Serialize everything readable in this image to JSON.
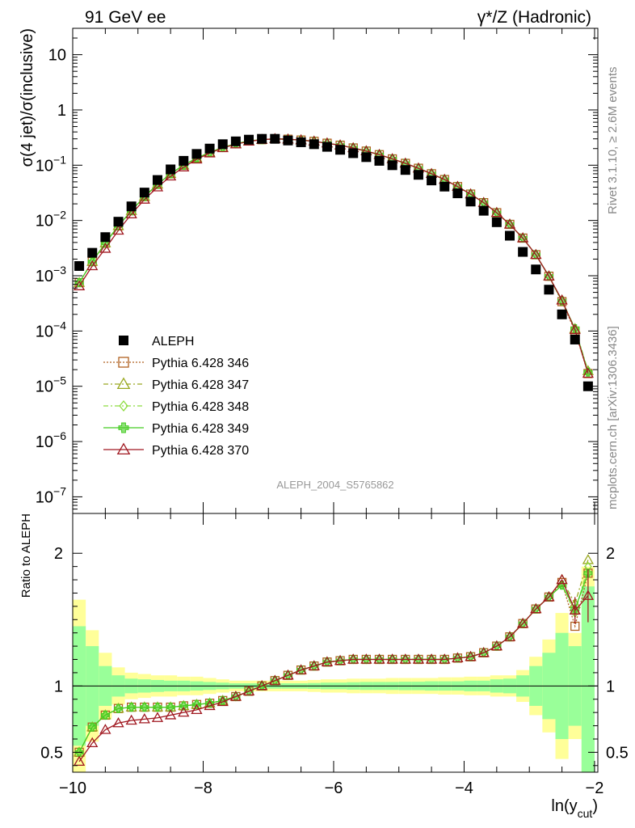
{
  "header": {
    "left": "91 GeV ee",
    "right": "γ*/Z (Hadronic)"
  },
  "side_text": {
    "top": "Rivet 3.1.10, ≥ 2.6M events",
    "bottom": "mcplots.cern.ch [arXiv:1306.3436]"
  },
  "analysis_label": "ALEPH_2004_S5765862",
  "chart_data": [
    {
      "type": "scatter",
      "panel": "main",
      "ylabel": "σ(4 jet)/σ(inclusive)",
      "yscale": "log",
      "ylim": [
        5e-08,
        30
      ],
      "xlim": [
        -10.0,
        -1.95
      ],
      "ytick_labels": [
        "10",
        "1",
        "10^-1",
        "10^-2",
        "10^-3",
        "10^-4",
        "10^-5",
        "10^-6",
        "10^-7"
      ],
      "x": [
        -9.9,
        -9.7,
        -9.5,
        -9.3,
        -9.1,
        -8.9,
        -8.7,
        -8.5,
        -8.3,
        -8.1,
        -7.9,
        -7.7,
        -7.5,
        -7.3,
        -7.1,
        -6.9,
        -6.7,
        -6.5,
        -6.3,
        -6.1,
        -5.9,
        -5.7,
        -5.5,
        -5.3,
        -5.1,
        -4.9,
        -4.7,
        -4.5,
        -4.3,
        -4.1,
        -3.9,
        -3.7,
        -3.5,
        -3.3,
        -3.1,
        -2.9,
        -2.7,
        -2.5,
        -2.3,
        -2.1
      ],
      "series": [
        {
          "name": "ALEPH",
          "color": "#000000",
          "marker": "square-filled",
          "values": [
            0.0015,
            0.0026,
            0.005,
            0.0095,
            0.018,
            0.032,
            0.054,
            0.084,
            0.12,
            0.16,
            0.2,
            0.24,
            0.27,
            0.29,
            0.3,
            0.3,
            0.28,
            0.26,
            0.24,
            0.215,
            0.19,
            0.165,
            0.14,
            0.12,
            0.1,
            0.082,
            0.067,
            0.053,
            0.041,
            0.031,
            0.022,
            0.015,
            0.0093,
            0.0053,
            0.0027,
            0.0013,
            0.00056,
            0.0002,
            7e-05,
            1e-05
          ]
        },
        {
          "name": "Pythia 6.428 346",
          "color": "#b06020",
          "marker": "square-open",
          "dash": "2,2",
          "values": [
            0.00075,
            0.0018,
            0.0039,
            0.008,
            0.015,
            0.027,
            0.045,
            0.07,
            0.1,
            0.135,
            0.17,
            0.21,
            0.245,
            0.275,
            0.29,
            0.3,
            0.295,
            0.285,
            0.27,
            0.25,
            0.23,
            0.205,
            0.18,
            0.155,
            0.13,
            0.108,
            0.088,
            0.07,
            0.055,
            0.041,
            0.03,
            0.021,
            0.0138,
            0.0085,
            0.0048,
            0.0024,
            0.00098,
            0.00034,
            0.0001,
            1.7e-05
          ]
        },
        {
          "name": "Pythia 6.428 347",
          "color": "#9aa820",
          "marker": "triangle-open",
          "dash": "6,3,2,3",
          "values": [
            0.00075,
            0.0018,
            0.0039,
            0.008,
            0.015,
            0.027,
            0.045,
            0.07,
            0.1,
            0.135,
            0.17,
            0.21,
            0.245,
            0.275,
            0.29,
            0.3,
            0.295,
            0.285,
            0.27,
            0.25,
            0.23,
            0.205,
            0.18,
            0.155,
            0.13,
            0.108,
            0.088,
            0.07,
            0.055,
            0.041,
            0.03,
            0.021,
            0.0138,
            0.0085,
            0.0048,
            0.0024,
            0.00098,
            0.00036,
            0.00011,
            1.9e-05
          ]
        },
        {
          "name": "Pythia 6.428 348",
          "color": "#8edc40",
          "marker": "diamond-open",
          "dash": "6,3,2,3",
          "values": [
            0.00075,
            0.0018,
            0.0039,
            0.008,
            0.015,
            0.027,
            0.045,
            0.07,
            0.1,
            0.135,
            0.17,
            0.21,
            0.245,
            0.275,
            0.29,
            0.3,
            0.295,
            0.285,
            0.27,
            0.25,
            0.23,
            0.205,
            0.18,
            0.155,
            0.13,
            0.108,
            0.088,
            0.07,
            0.055,
            0.041,
            0.03,
            0.021,
            0.0138,
            0.0085,
            0.0048,
            0.0024,
            0.00098,
            0.00035,
            0.00011,
            1.85e-05
          ]
        },
        {
          "name": "Pythia 6.428 349",
          "color": "#44cc22",
          "marker": "cross-open",
          "dash": "",
          "values": [
            0.00075,
            0.0018,
            0.0039,
            0.008,
            0.015,
            0.027,
            0.045,
            0.07,
            0.1,
            0.135,
            0.17,
            0.21,
            0.245,
            0.275,
            0.29,
            0.3,
            0.295,
            0.285,
            0.27,
            0.25,
            0.23,
            0.205,
            0.18,
            0.155,
            0.13,
            0.108,
            0.088,
            0.07,
            0.055,
            0.041,
            0.03,
            0.021,
            0.0138,
            0.0085,
            0.0048,
            0.0024,
            0.00098,
            0.00035,
            0.00011,
            1.8e-05
          ]
        },
        {
          "name": "Pythia 6.428 370",
          "color": "#a01820",
          "marker": "triangle-open",
          "dash": "",
          "values": [
            0.00065,
            0.0015,
            0.0031,
            0.0066,
            0.013,
            0.024,
            0.04,
            0.063,
            0.092,
            0.128,
            0.165,
            0.205,
            0.24,
            0.27,
            0.29,
            0.3,
            0.295,
            0.285,
            0.27,
            0.25,
            0.23,
            0.205,
            0.18,
            0.155,
            0.13,
            0.108,
            0.088,
            0.07,
            0.055,
            0.041,
            0.03,
            0.021,
            0.0138,
            0.0085,
            0.0048,
            0.0024,
            0.00098,
            0.00036,
            0.000105,
            1.7e-05
          ]
        }
      ]
    },
    {
      "type": "line",
      "panel": "ratio",
      "ylabel": "Ratio to ALEPH",
      "xlabel": "ln(y",
      "xlabel_sub": "cut",
      "xlabel_close": ")",
      "ylim": [
        0.35,
        2.3
      ],
      "xlim": [
        -10.0,
        -1.95
      ],
      "xtick_labels": [
        "−10",
        "−8",
        "−6",
        "−4",
        "−2"
      ],
      "ytick_labels": [
        "0.5",
        "1",
        "2"
      ],
      "x": [
        -9.9,
        -9.7,
        -9.5,
        -9.3,
        -9.1,
        -8.9,
        -8.7,
        -8.5,
        -8.3,
        -8.1,
        -7.9,
        -7.7,
        -7.5,
        -7.3,
        -7.1,
        -6.9,
        -6.7,
        -6.5,
        -6.3,
        -6.1,
        -5.9,
        -5.7,
        -5.5,
        -5.3,
        -5.1,
        -4.9,
        -4.7,
        -4.5,
        -4.3,
        -4.1,
        -3.9,
        -3.7,
        -3.5,
        -3.3,
        -3.1,
        -2.9,
        -2.7,
        -2.5,
        -2.3,
        -2.1
      ],
      "band_edges": [
        -10.0,
        -9.8,
        -9.6,
        -9.4,
        -9.2,
        -9.0,
        -8.8,
        -8.6,
        -8.4,
        -8.2,
        -8.0,
        -7.8,
        -7.6,
        -7.4,
        -7.2,
        -7.0,
        -6.8,
        -6.6,
        -6.4,
        -6.2,
        -6.0,
        -5.8,
        -5.6,
        -5.4,
        -5.2,
        -5.0,
        -4.8,
        -4.6,
        -4.4,
        -4.2,
        -4.0,
        -3.8,
        -3.6,
        -3.4,
        -3.2,
        -3.0,
        -2.8,
        -2.6,
        -2.4,
        -2.2,
        -2.0
      ],
      "band_total": [
        0.65,
        0.42,
        0.25,
        0.14,
        0.1,
        0.09,
        0.08,
        0.08,
        0.07,
        0.07,
        0.06,
        0.05,
        0.04,
        0.04,
        0.04,
        0.04,
        0.04,
        0.04,
        0.045,
        0.05,
        0.05,
        0.055,
        0.055,
        0.055,
        0.06,
        0.06,
        0.06,
        0.06,
        0.065,
        0.065,
        0.07,
        0.07,
        0.08,
        0.08,
        0.12,
        0.22,
        0.35,
        0.55,
        0.4,
        0.9
      ],
      "band_stat": [
        0.45,
        0.3,
        0.15,
        0.08,
        0.055,
        0.05,
        0.045,
        0.04,
        0.04,
        0.035,
        0.03,
        0.025,
        0.02,
        0.02,
        0.02,
        0.02,
        0.02,
        0.02,
        0.022,
        0.025,
        0.025,
        0.028,
        0.03,
        0.03,
        0.03,
        0.032,
        0.032,
        0.035,
        0.035,
        0.035,
        0.04,
        0.04,
        0.05,
        0.055,
        0.08,
        0.15,
        0.25,
        0.4,
        0.3,
        0.75
      ],
      "series": [
        {
          "name": "Pythia 6.428 346",
          "color": "#b06020",
          "marker": "square-open",
          "values": [
            0.5,
            0.69,
            0.78,
            0.83,
            0.84,
            0.84,
            0.84,
            0.84,
            0.85,
            0.86,
            0.87,
            0.89,
            0.92,
            0.96,
            1.0,
            1.04,
            1.08,
            1.12,
            1.15,
            1.18,
            1.19,
            1.2,
            1.2,
            1.2,
            1.2,
            1.2,
            1.2,
            1.2,
            1.2,
            1.21,
            1.22,
            1.25,
            1.3,
            1.37,
            1.47,
            1.58,
            1.67,
            1.78,
            1.45,
            1.85
          ]
        },
        {
          "name": "Pythia 6.428 347",
          "color": "#9aa820",
          "marker": "triangle-open",
          "values": [
            0.5,
            0.69,
            0.78,
            0.83,
            0.84,
            0.84,
            0.84,
            0.84,
            0.85,
            0.86,
            0.87,
            0.89,
            0.92,
            0.96,
            1.0,
            1.04,
            1.08,
            1.12,
            1.15,
            1.18,
            1.19,
            1.2,
            1.2,
            1.2,
            1.2,
            1.2,
            1.2,
            1.2,
            1.2,
            1.21,
            1.22,
            1.25,
            1.3,
            1.37,
            1.47,
            1.58,
            1.67,
            1.8,
            1.62,
            1.95
          ]
        },
        {
          "name": "Pythia 6.428 348",
          "color": "#8edc40",
          "marker": "diamond-open",
          "values": [
            0.5,
            0.69,
            0.78,
            0.83,
            0.84,
            0.84,
            0.84,
            0.84,
            0.85,
            0.86,
            0.87,
            0.89,
            0.92,
            0.96,
            1.0,
            1.04,
            1.08,
            1.12,
            1.15,
            1.18,
            1.19,
            1.2,
            1.2,
            1.2,
            1.2,
            1.2,
            1.2,
            1.2,
            1.2,
            1.21,
            1.22,
            1.25,
            1.3,
            1.37,
            1.47,
            1.58,
            1.67,
            1.76,
            1.55,
            1.9
          ]
        },
        {
          "name": "Pythia 6.428 349",
          "color": "#44cc22",
          "marker": "cross-open",
          "values": [
            0.5,
            0.69,
            0.78,
            0.83,
            0.84,
            0.84,
            0.84,
            0.84,
            0.85,
            0.86,
            0.87,
            0.89,
            0.92,
            0.96,
            1.0,
            1.04,
            1.08,
            1.12,
            1.15,
            1.18,
            1.19,
            1.2,
            1.2,
            1.2,
            1.2,
            1.2,
            1.2,
            1.2,
            1.2,
            1.21,
            1.22,
            1.25,
            1.3,
            1.37,
            1.47,
            1.58,
            1.67,
            1.76,
            1.58,
            1.85
          ]
        },
        {
          "name": "Pythia 6.428 370",
          "color": "#a01820",
          "marker": "triangle-open",
          "values": [
            0.43,
            0.57,
            0.67,
            0.72,
            0.74,
            0.75,
            0.76,
            0.78,
            0.8,
            0.82,
            0.85,
            0.88,
            0.92,
            0.96,
            1.0,
            1.04,
            1.08,
            1.12,
            1.15,
            1.18,
            1.19,
            1.2,
            1.2,
            1.2,
            1.2,
            1.2,
            1.2,
            1.2,
            1.2,
            1.21,
            1.22,
            1.25,
            1.3,
            1.37,
            1.47,
            1.58,
            1.67,
            1.8,
            1.57,
            1.68
          ]
        }
      ]
    }
  ]
}
